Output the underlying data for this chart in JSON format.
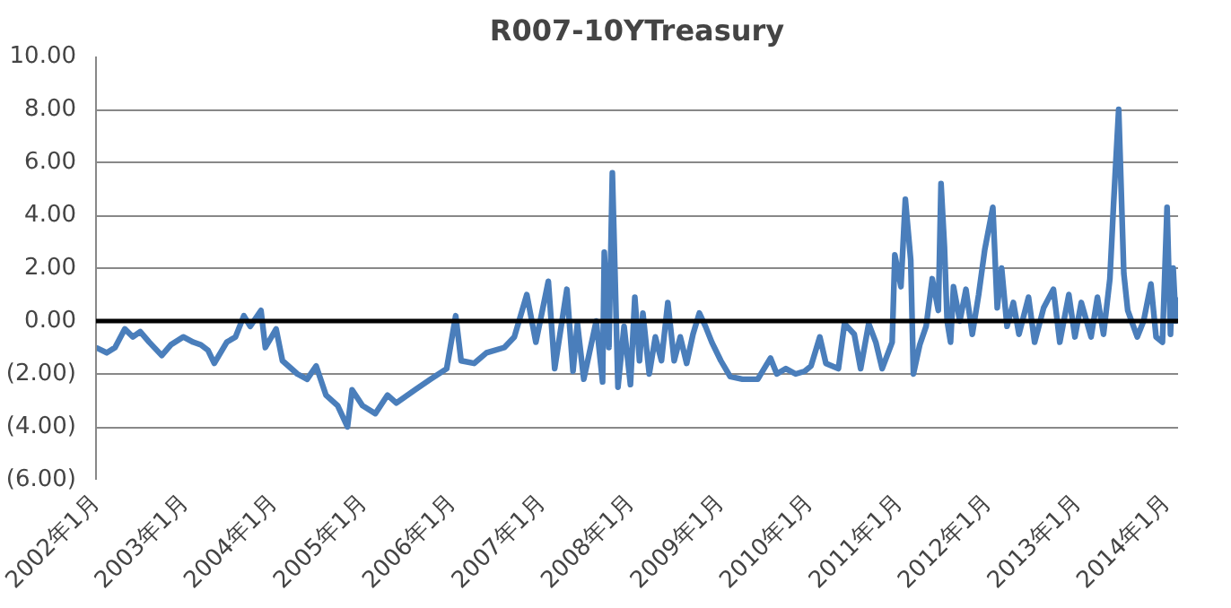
{
  "chart_data": {
    "type": "line",
    "title": "R007-10YTreasury",
    "x": [
      "2002-01-01",
      "2002-02-14",
      "2002-03-20",
      "2002-04-29",
      "2002-06-01",
      "2002-07-01",
      "2002-08-07",
      "2002-09-27",
      "2002-11-03",
      "2002-12-24",
      "2003-02-03",
      "2003-03-06",
      "2003-04-04",
      "2003-04-30",
      "2003-06-20",
      "2003-07-26",
      "2003-08-29",
      "2003-09-24",
      "2003-11-07",
      "2003-11-25",
      "2004-01-08",
      "2004-02-03",
      "2004-04-04",
      "2004-05-14",
      "2004-06-20",
      "2004-07-30",
      "2004-09-16",
      "2004-10-26",
      "2004-11-14",
      "2004-12-27",
      "2005-02-17",
      "2005-04-08",
      "2005-05-14",
      "2005-07-30",
      "2005-10-01",
      "2005-12-06",
      "2006-01-12",
      "2006-02-03",
      "2006-03-28",
      "2006-05-18",
      "2006-07-30",
      "2006-09-09",
      "2006-10-30",
      "2006-12-06",
      "2007-01-26",
      "2007-02-21",
      "2007-04-12",
      "2007-05-07",
      "2007-05-25",
      "2007-06-20",
      "2007-08-10",
      "2007-09-05",
      "2007-09-12",
      "2007-10-01",
      "2007-10-15",
      "2007-11-07",
      "2007-12-02",
      "2007-12-28",
      "2008-01-15",
      "2008-02-03",
      "2008-02-17",
      "2008-03-14",
      "2008-04-08",
      "2008-05-03",
      "2008-05-29",
      "2008-06-24",
      "2008-07-19",
      "2008-08-14",
      "2008-09-09",
      "2008-10-05",
      "2008-10-30",
      "2008-11-25",
      "2009-01-01",
      "2009-02-08",
      "2009-03-30",
      "2009-06-01",
      "2009-07-23",
      "2009-08-18",
      "2009-09-24",
      "2009-11-03",
      "2009-12-10",
      "2010-01-05",
      "2010-02-10",
      "2010-03-07",
      "2010-04-27",
      "2010-05-22",
      "2010-07-01",
      "2010-07-27",
      "2010-08-29",
      "2010-09-27",
      "2010-10-23",
      "2010-12-03",
      "2010-12-14",
      "2011-01-08",
      "2011-01-26",
      "2011-02-17",
      "2011-02-28",
      "2011-03-26",
      "2011-04-21",
      "2011-05-16",
      "2011-06-10",
      "2011-06-21",
      "2011-07-05",
      "2011-07-16",
      "2011-07-30",
      "2011-08-11",
      "2011-09-06",
      "2011-10-01",
      "2011-10-27",
      "2011-11-22",
      "2011-12-17",
      "2012-01-19",
      "2012-02-06",
      "2012-02-24",
      "2012-03-17",
      "2012-04-12",
      "2012-05-05",
      "2012-06-13",
      "2012-07-08",
      "2012-08-14",
      "2012-09-23",
      "2012-10-19",
      "2012-11-25",
      "2012-12-20",
      "2013-01-15",
      "2013-02-24",
      "2013-03-22",
      "2013-04-16",
      "2013-05-12",
      "2013-05-27",
      "2013-06-17",
      "2013-07-08",
      "2013-07-24",
      "2013-09-01",
      "2013-09-27",
      "2013-10-27",
      "2013-11-17",
      "2013-12-13",
      "2014-01-01",
      "2014-01-15",
      "2014-01-26",
      "2014-02-06",
      "2014-02-14"
    ],
    "series": [
      {
        "color": "#4a7ebb",
        "values": [
          -1.0,
          -1.2,
          -1.0,
          -0.3,
          -0.6,
          -0.4,
          -0.8,
          -1.3,
          -0.9,
          -0.6,
          -0.8,
          -0.9,
          -1.1,
          -1.6,
          -0.8,
          -0.6,
          0.2,
          -0.2,
          0.4,
          -1.0,
          -0.3,
          -1.5,
          -2.0,
          -2.2,
          -1.7,
          -2.8,
          -3.2,
          -4.0,
          -2.6,
          -3.2,
          -3.5,
          -2.8,
          -3.1,
          -2.6,
          -2.2,
          -1.8,
          0.2,
          -1.5,
          -1.6,
          -1.2,
          -1.0,
          -0.6,
          1.0,
          -0.8,
          1.5,
          -1.8,
          1.2,
          -1.9,
          -0.1,
          -2.2,
          0.0,
          -2.3,
          2.6,
          -1.0,
          5.6,
          -2.5,
          -0.2,
          -2.4,
          0.9,
          -1.5,
          0.3,
          -2.0,
          -0.6,
          -1.5,
          0.7,
          -1.5,
          -0.6,
          -1.6,
          -0.5,
          0.3,
          -0.2,
          -0.8,
          -1.5,
          -2.1,
          -2.2,
          -2.2,
          -1.4,
          -2.0,
          -1.8,
          -2.0,
          -1.9,
          -1.7,
          -0.6,
          -1.6,
          -1.8,
          -0.1,
          -0.5,
          -1.8,
          -0.1,
          -0.8,
          -1.8,
          -0.8,
          2.5,
          1.3,
          4.6,
          2.3,
          -2.0,
          -0.9,
          -0.2,
          1.6,
          0.4,
          5.2,
          2.8,
          0.0,
          -0.8,
          1.3,
          0.0,
          1.2,
          -0.5,
          1.0,
          2.7,
          4.3,
          0.5,
          2.0,
          -0.2,
          0.7,
          -0.5,
          0.9,
          -0.8,
          0.5,
          1.2,
          -0.8,
          1.0,
          -0.6,
          0.7,
          -0.6,
          0.9,
          -0.5,
          1.6,
          4.4,
          8.0,
          1.8,
          0.4,
          -0.6,
          0.0,
          1.4,
          -0.6,
          -0.8,
          4.3,
          -0.5,
          2.0,
          0.0,
          0.9
        ]
      }
    ],
    "xlim": [
      "2002-01-01",
      "2014-02-15"
    ],
    "xticks": [
      {
        "value": "2002-01-01",
        "label": "2002年1月"
      },
      {
        "value": "2003-01-01",
        "label": "2003年1月"
      },
      {
        "value": "2004-01-01",
        "label": "2004年1月"
      },
      {
        "value": "2005-01-01",
        "label": "2005年1月"
      },
      {
        "value": "2006-01-01",
        "label": "2006年1月"
      },
      {
        "value": "2007-01-01",
        "label": "2007年1月"
      },
      {
        "value": "2008-01-01",
        "label": "2008年1月"
      },
      {
        "value": "2009-01-01",
        "label": "2009年1月"
      },
      {
        "value": "2010-01-01",
        "label": "2010年1月"
      },
      {
        "value": "2011-01-01",
        "label": "2011年1月"
      },
      {
        "value": "2012-01-01",
        "label": "2012年1月"
      },
      {
        "value": "2013-01-01",
        "label": "2013年1月"
      },
      {
        "value": "2014-01-01",
        "label": "2014年1月"
      }
    ],
    "ylim": [
      -6,
      10
    ],
    "yticks": [
      {
        "value": 10,
        "label": "10.00"
      },
      {
        "value": 8,
        "label": "8.00"
      },
      {
        "value": 6,
        "label": "6.00"
      },
      {
        "value": 4,
        "label": "4.00"
      },
      {
        "value": 2,
        "label": "2.00"
      },
      {
        "value": 0,
        "label": "0.00"
      },
      {
        "value": -2,
        "label": "(2.00)"
      },
      {
        "value": -4,
        "label": "(4.00)"
      },
      {
        "value": -6,
        "label": "(6.00)"
      }
    ],
    "ref_lines": [
      {
        "axis": "y",
        "value": 0,
        "color": "#000000"
      }
    ],
    "grid": "y",
    "marker": "none",
    "line_style": "solid"
  }
}
